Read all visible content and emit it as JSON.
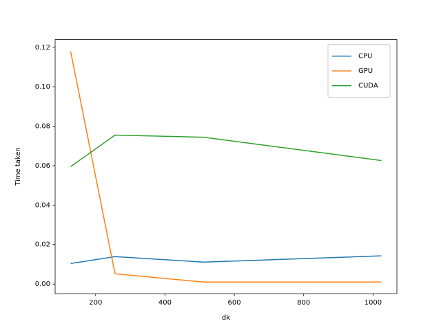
{
  "chart_data": {
    "type": "line",
    "x_label": "dk",
    "y_label": "Time taken",
    "x": [
      128,
      256,
      512,
      1024
    ],
    "series": [
      {
        "name": "CPU",
        "color": "#1f77b4",
        "values": [
          0.0104,
          0.0139,
          0.0111,
          0.0143
        ]
      },
      {
        "name": "GPU",
        "color": "#ff7f0e",
        "values": [
          0.1179,
          0.0052,
          0.001,
          0.001
        ]
      },
      {
        "name": "CUDA",
        "color": "#2ca02c",
        "values": [
          0.0595,
          0.0755,
          0.0744,
          0.0626
        ]
      }
    ],
    "xlim": [
      83.2,
      1068.8
    ],
    "xticks": [
      200,
      400,
      600,
      800,
      1000
    ],
    "ylim": [
      -0.0049,
      0.1239
    ],
    "yticks": [
      {
        "value": 0,
        "label": "0.00"
      },
      {
        "value": 0.02,
        "label": "0.02"
      },
      {
        "value": 0.04,
        "label": "0.04"
      },
      {
        "value": 0.06,
        "label": "0.06"
      },
      {
        "value": 0.08,
        "label": "0.08"
      },
      {
        "value": 0.1,
        "label": "0.10"
      },
      {
        "value": 0.12,
        "label": "0.12"
      }
    ],
    "legend": "upper right",
    "grid": false
  }
}
